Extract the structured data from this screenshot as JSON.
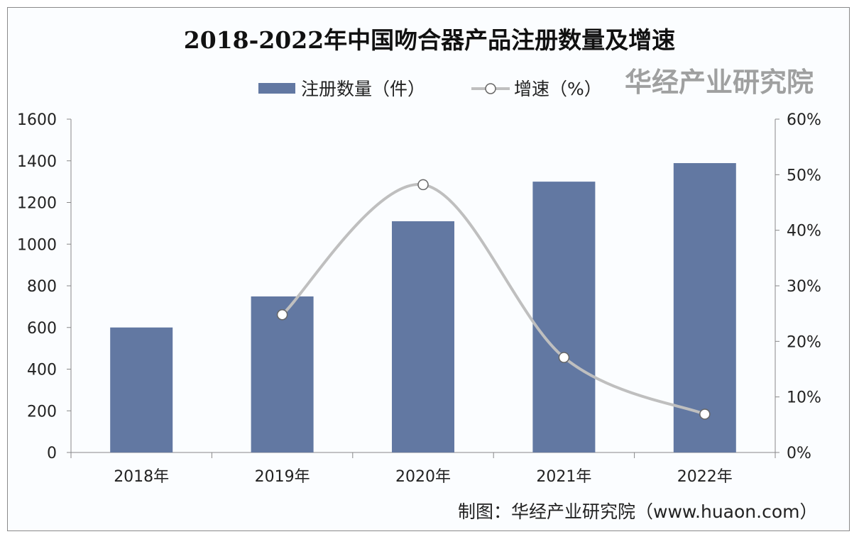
{
  "chart_data": {
    "type": "bar+line",
    "title": "2018-2022年中国吻合器产品注册数量及增速",
    "categories": [
      "2018年",
      "2019年",
      "2020年",
      "2021年",
      "2022年"
    ],
    "series": [
      {
        "name": "注册数量（件）",
        "type": "bar",
        "axis": "left",
        "values": [
          600,
          749,
          1110,
          1300,
          1389
        ],
        "color": "#6278a2"
      },
      {
        "name": "增速（%）",
        "type": "line",
        "axis": "right",
        "values": [
          null,
          24.8,
          48.2,
          17.1,
          6.9
        ],
        "color": "#bfbfbf"
      }
    ],
    "left_axis": {
      "ylim": [
        0,
        1600
      ],
      "ticks": [
        "0",
        "200",
        "400",
        "600",
        "800",
        "1000",
        "1200",
        "1400",
        "1600"
      ]
    },
    "right_axis": {
      "ylim": [
        0,
        60
      ],
      "ticks": [
        "0%",
        "10%",
        "20%",
        "30%",
        "40%",
        "50%",
        "60%"
      ]
    },
    "legend_position": "top",
    "grid": false
  },
  "source": "制图：华经产业研究院（www.huaon.com）",
  "watermark": "华经产业研究院"
}
